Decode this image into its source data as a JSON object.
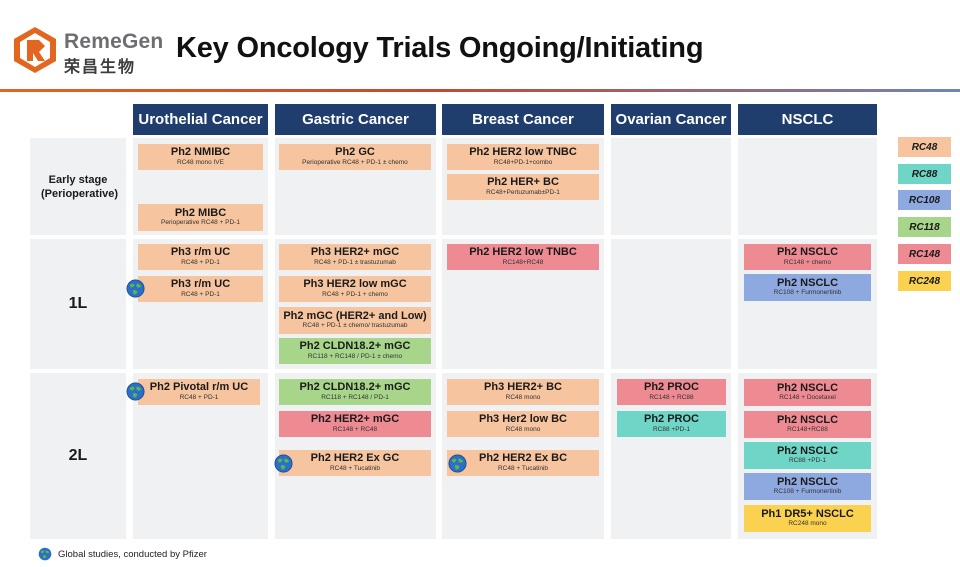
{
  "header": {
    "logo_en": "RemeGen",
    "logo_cn": "荣昌生物",
    "title": "Key Oncology Trials Ongoing/Initiating"
  },
  "columns": [
    "Urothelial Cancer",
    "Gastric Cancer",
    "Breast Cancer",
    "Ovarian Cancer",
    "NSCLC"
  ],
  "rows": {
    "early": "Early stage (Perioperative)",
    "first": "1L",
    "second": "2L"
  },
  "trials": {
    "uro_early_1": {
      "title": "Ph2 NMIBC",
      "sub": "RC48 mono IVE"
    },
    "uro_early_2": {
      "title": "Ph2 MIBC",
      "sub": "Perioperative RC48 + PD-1"
    },
    "gas_early_1": {
      "title": "Ph2 GC",
      "sub": "Perioperative RC48 + PD-1 ± chemo"
    },
    "br_early_1": {
      "title": "Ph2 HER2 low TNBC",
      "sub": "RC48+PD-1+combo"
    },
    "br_early_2": {
      "title": "Ph2 HER+ BC",
      "sub": "RC48+Pertuzumab±PD-1"
    },
    "uro_1l_1": {
      "title": "Ph3 r/m UC",
      "sub": "RC48 + PD-1"
    },
    "uro_1l_2": {
      "title": "Ph3 r/m UC",
      "sub": "RC48 + PD-1"
    },
    "gas_1l_1": {
      "title": "Ph3 HER2+ mGC",
      "sub": "RC48 + PD-1 ± trastuzumab"
    },
    "gas_1l_2": {
      "title": "Ph3 HER2 low mGC",
      "sub": "RC48 + PD-1 + chemo"
    },
    "gas_1l_3": {
      "title": "Ph2 mGC (HER2+ and Low)",
      "sub": "RC48 + PD-1 ± chemo/ trastuzumab"
    },
    "gas_1l_4": {
      "title": "Ph2 CLDN18.2+ mGC",
      "sub": "RC118 + RC148 / PD-1 ± chemo"
    },
    "br_1l_1": {
      "title": "Ph2 HER2 low TNBC",
      "sub": "RC148+RC48"
    },
    "ns_1l_1": {
      "title": "Ph2 NSCLC",
      "sub": "RC148 + chemo"
    },
    "ns_1l_2": {
      "title": "Ph2 NSCLC",
      "sub": "RC108 + Furmonertinib"
    },
    "uro_2l_1": {
      "title": "Ph2 Pivotal r/m UC",
      "sub": "RC48 + PD-1"
    },
    "gas_2l_1": {
      "title": "Ph2 CLDN18.2+ mGC",
      "sub": "RC118 + RC148 / PD-1"
    },
    "gas_2l_2": {
      "title": "Ph2 HER2+ mGC",
      "sub": "RC148 + RC48"
    },
    "gas_2l_3": {
      "title": "Ph2 HER2 Ex GC",
      "sub": "RC48 + Tucatinib"
    },
    "br_2l_1": {
      "title": "Ph3 HER2+ BC",
      "sub": "RC48 mono"
    },
    "br_2l_2": {
      "title": "Ph3 Her2 low BC",
      "sub": "RC48 mono"
    },
    "br_2l_3": {
      "title": "Ph2 HER2 Ex BC",
      "sub": "RC48 + Tucatinib"
    },
    "ov_2l_1": {
      "title": "Ph2 PROC",
      "sub": "RC148 + RC88"
    },
    "ov_2l_2": {
      "title": "Ph2 PROC",
      "sub": "RC88 +PD-1"
    },
    "ns_2l_1": {
      "title": "Ph2 NSCLC",
      "sub": "RC148 + Docetaxel"
    },
    "ns_2l_2": {
      "title": "Ph2 NSCLC",
      "sub": "RC148+RC88"
    },
    "ns_2l_3": {
      "title": "Ph2 NSCLC",
      "sub": "RC88 +PD-1"
    },
    "ns_2l_4": {
      "title": "Ph2 NSCLC",
      "sub": "RC108 + Furmonertinib"
    },
    "ns_2l_5": {
      "title": "Ph1 DR5+ NSCLC",
      "sub": "RC248 mono"
    }
  },
  "legend": [
    "RC48",
    "RC88",
    "RC108",
    "RC118",
    "RC148",
    "RC248"
  ],
  "colors": {
    "RC48": "#f6c49e",
    "RC88": "#6fd5c6",
    "RC108": "#8ea8e0",
    "RC118": "#a7d68b",
    "RC148": "#ee8a92",
    "RC248": "#fbd24f",
    "header": "#1f3d6d",
    "accent": "#e2661f"
  },
  "footnote": "Global studies, conducted by Pfizer",
  "icons": {
    "globe": "globe-icon",
    "logo": "remegen-logo-icon"
  }
}
